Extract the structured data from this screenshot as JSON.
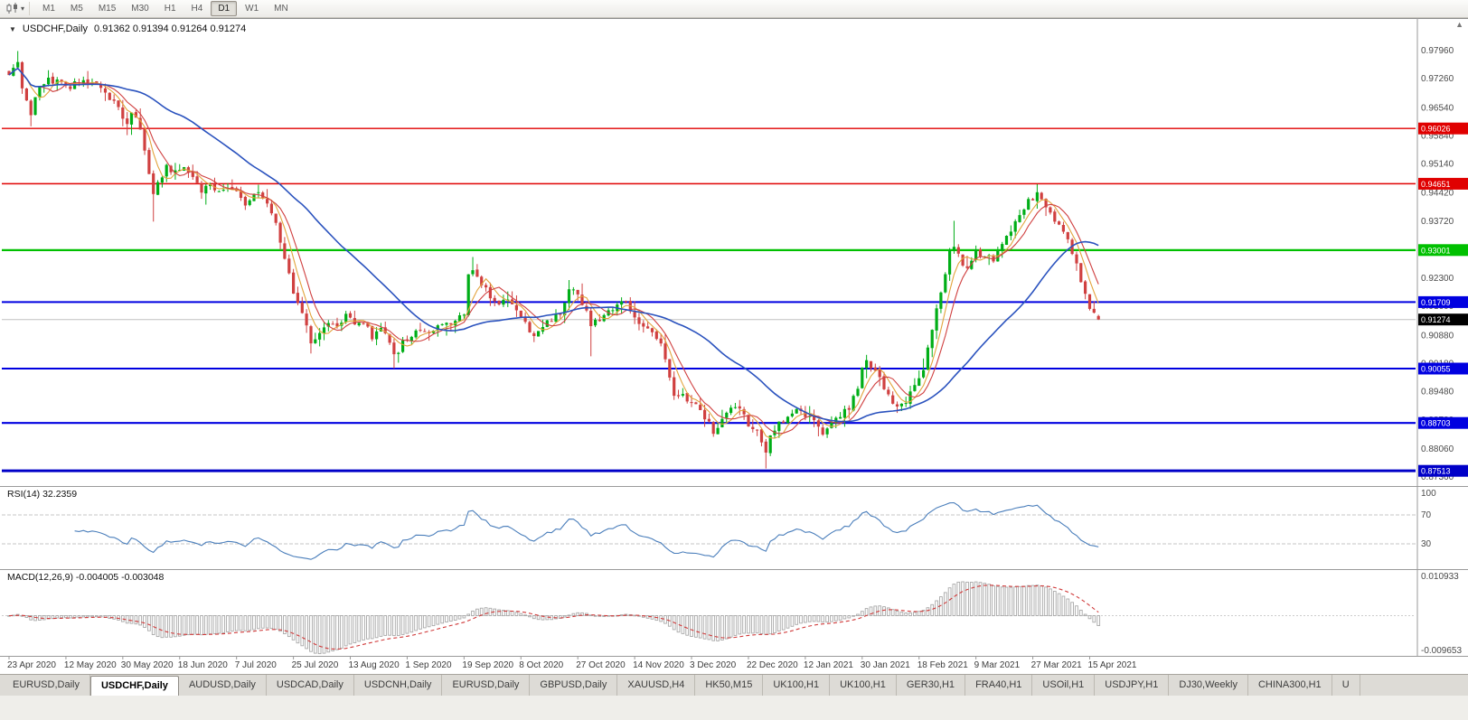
{
  "toolbar": {
    "chart_icon": "candlestick-chart",
    "timeframes": [
      "M1",
      "M5",
      "M15",
      "M30",
      "H1",
      "H4",
      "D1",
      "W1",
      "MN"
    ],
    "active_timeframe": "D1"
  },
  "chart": {
    "collapse_icon": "▼",
    "symbol": "USDCHF,Daily",
    "ohlc": "0.91362 0.91394 0.91264 0.91274",
    "open": 0.91362,
    "high": 0.91394,
    "low": 0.91264,
    "close": 0.91274
  },
  "price_axis": {
    "labels": [
      {
        "v": 0.9796,
        "t": "0.97960"
      },
      {
        "v": 0.9726,
        "t": "0.97260"
      },
      {
        "v": 0.9654,
        "t": "0.96540"
      },
      {
        "v": 0.9584,
        "t": "0.95840"
      },
      {
        "v": 0.9514,
        "t": "0.95140"
      },
      {
        "v": 0.9442,
        "t": "0.94420"
      },
      {
        "v": 0.9372,
        "t": "0.93720"
      },
      {
        "v": 0.9302,
        "t": "0.93020"
      },
      {
        "v": 0.923,
        "t": "0.92300"
      },
      {
        "v": 0.916,
        "t": "0.91600"
      },
      {
        "v": 0.9088,
        "t": "0.90880"
      },
      {
        "v": 0.9018,
        "t": "0.90180"
      },
      {
        "v": 0.8948,
        "t": "0.89480"
      },
      {
        "v": 0.8878,
        "t": "0.88780"
      },
      {
        "v": 0.8806,
        "t": "0.88060"
      },
      {
        "v": 0.8736,
        "t": "0.87360"
      }
    ]
  },
  "levels": [
    {
      "v": 0.96026,
      "t": "0.96026",
      "c": "#e00000",
      "w": 1.4
    },
    {
      "v": 0.94651,
      "t": "0.94651",
      "c": "#e00000",
      "w": 1.4
    },
    {
      "v": 0.93001,
      "t": "0.93001",
      "c": "#00c000",
      "w": 2.2
    },
    {
      "v": 0.91709,
      "t": "0.91709",
      "c": "#0000e0",
      "w": 2
    },
    {
      "v": 0.90055,
      "t": "0.90055",
      "c": "#0000e0",
      "w": 2
    },
    {
      "v": 0.88703,
      "t": "0.88703",
      "c": "#0000e0",
      "w": 2.2
    },
    {
      "v": 0.87513,
      "t": "0.87513",
      "c": "#0000c8",
      "w": 3
    }
  ],
  "current_price": {
    "v": 0.91274,
    "t": "0.91274",
    "c": "#000000"
  },
  "rsi": {
    "label": "RSI(14) 32.2359",
    "period": 14,
    "value": 32.2359,
    "color": "#4a7ebb",
    "axis": [
      {
        "v": 100,
        "t": "100"
      },
      {
        "v": 70,
        "t": "70"
      },
      {
        "v": 30,
        "t": "30"
      }
    ],
    "guides": [
      70,
      30
    ]
  },
  "macd": {
    "label": "MACD(12,26,9) -0.004005 -0.003048",
    "fast": 12,
    "slow": 26,
    "signal_period": 9,
    "main_value": -0.004005,
    "signal_value": -0.003048,
    "histogram_color": "#a8a8a8",
    "signal_color": "#d03a3a",
    "axis_top": {
      "v": 0.010933,
      "t": "0.010933"
    },
    "axis_bottom": {
      "v": -0.009653,
      "t": "-0.009653"
    }
  },
  "dates": [
    {
      "bar": 0,
      "t": "23 Apr 2020"
    },
    {
      "bar": 13,
      "t": "12 May 2020"
    },
    {
      "bar": 26,
      "t": "30 May 2020"
    },
    {
      "bar": 39,
      "t": "18 Jun 2020"
    },
    {
      "bar": 52,
      "t": "7 Jul 2020"
    },
    {
      "bar": 65,
      "t": "25 Jul 2020"
    },
    {
      "bar": 78,
      "t": "13 Aug 2020"
    },
    {
      "bar": 91,
      "t": "1 Sep 2020"
    },
    {
      "bar": 104,
      "t": "19 Sep 2020"
    },
    {
      "bar": 117,
      "t": "8 Oct 2020"
    },
    {
      "bar": 130,
      "t": "27 Oct 2020"
    },
    {
      "bar": 143,
      "t": "14 Nov 2020"
    },
    {
      "bar": 156,
      "t": "3 Dec 2020"
    },
    {
      "bar": 169,
      "t": "22 Dec 2020"
    },
    {
      "bar": 182,
      "t": "12 Jan 2021"
    },
    {
      "bar": 195,
      "t": "30 Jan 2021"
    },
    {
      "bar": 208,
      "t": "18 Feb 2021"
    },
    {
      "bar": 221,
      "t": "9 Mar 2021"
    },
    {
      "bar": 234,
      "t": "27 Mar 2021"
    },
    {
      "bar": 247,
      "t": "15 Apr 2021"
    }
  ],
  "tabs": {
    "active_index": 1,
    "items": [
      "EURUSD,Daily",
      "USDCHF,Daily",
      "AUDUSD,Daily",
      "USDCAD,Daily",
      "USDCNH,Daily",
      "EURUSD,Daily",
      "GBPUSD,Daily",
      "XAUUSD,H4",
      "HK50,M15",
      "UK100,H1",
      "UK100,H1",
      "GER30,H1",
      "FRA40,H1",
      "USOil,H1",
      "USDJPY,H1",
      "DJ30,Weekly",
      "CHINA300,H1",
      "U"
    ]
  },
  "chart_data": {
    "type": "candlestick",
    "symbol": "USDCHF",
    "timeframe": "Daily",
    "bars": 250,
    "price_range": [
      0.8718,
      0.9868
    ],
    "noise": 0.0009,
    "wick": 0.0016,
    "up_color": "#00ae17",
    "down_color": "#d04040",
    "moving_averages": [
      {
        "period": 5,
        "color": "#e2a43c"
      },
      {
        "period": 8,
        "color": "#d04040"
      },
      {
        "period": 34,
        "color": "#2a52be"
      }
    ],
    "close_waypoints": [
      [
        0,
        0.9738
      ],
      [
        2,
        0.9768
      ],
      [
        3,
        0.97
      ],
      [
        5,
        0.9638
      ],
      [
        6,
        0.9682
      ],
      [
        8,
        0.9718
      ],
      [
        11,
        0.9724
      ],
      [
        13,
        0.97
      ],
      [
        15,
        0.9718
      ],
      [
        18,
        0.9713
      ],
      [
        21,
        0.9706
      ],
      [
        23,
        0.9682
      ],
      [
        25,
        0.9656
      ],
      [
        27,
        0.9614
      ],
      [
        28,
        0.9641
      ],
      [
        30,
        0.9602
      ],
      [
        33,
        0.9441
      ],
      [
        34,
        0.9463
      ],
      [
        36,
        0.9503
      ],
      [
        38,
        0.9491
      ],
      [
        40,
        0.9506
      ],
      [
        42,
        0.9481
      ],
      [
        44,
        0.9449
      ],
      [
        46,
        0.9463
      ],
      [
        48,
        0.9446
      ],
      [
        50,
        0.9462
      ],
      [
        52,
        0.9441
      ],
      [
        54,
        0.9413
      ],
      [
        56,
        0.9446
      ],
      [
        58,
        0.9433
      ],
      [
        60,
        0.9399
      ],
      [
        62,
        0.9321
      ],
      [
        64,
        0.9249
      ],
      [
        65,
        0.9193
      ],
      [
        67,
        0.9149
      ],
      [
        69,
        0.9073
      ],
      [
        71,
        0.9093
      ],
      [
        73,
        0.9119
      ],
      [
        75,
        0.9103
      ],
      [
        77,
        0.9136
      ],
      [
        79,
        0.9113
      ],
      [
        81,
        0.9121
      ],
      [
        83,
        0.9086
      ],
      [
        85,
        0.9112
      ],
      [
        87,
        0.9061
      ],
      [
        88,
        0.9036
      ],
      [
        90,
        0.9071
      ],
      [
        92,
        0.9084
      ],
      [
        94,
        0.9106
      ],
      [
        96,
        0.9091
      ],
      [
        98,
        0.9109
      ],
      [
        100,
        0.9126
      ],
      [
        102,
        0.9119
      ],
      [
        104,
        0.9144
      ],
      [
        105,
        0.9233
      ],
      [
        106,
        0.9259
      ],
      [
        108,
        0.9221
      ],
      [
        110,
        0.9176
      ],
      [
        112,
        0.9163
      ],
      [
        114,
        0.9179
      ],
      [
        116,
        0.9151
      ],
      [
        118,
        0.9116
      ],
      [
        120,
        0.9083
      ],
      [
        122,
        0.9106
      ],
      [
        124,
        0.9129
      ],
      [
        126,
        0.9141
      ],
      [
        128,
        0.9206
      ],
      [
        130,
        0.9183
      ],
      [
        132,
        0.9156
      ],
      [
        133,
        0.9113
      ],
      [
        135,
        0.9129
      ],
      [
        137,
        0.9153
      ],
      [
        139,
        0.9163
      ],
      [
        141,
        0.9169
      ],
      [
        143,
        0.9129
      ],
      [
        145,
        0.9116
      ],
      [
        147,
        0.9099
      ],
      [
        149,
        0.9073
      ],
      [
        151,
        0.8989
      ],
      [
        152,
        0.8929
      ],
      [
        154,
        0.8936
      ],
      [
        156,
        0.8913
      ],
      [
        158,
        0.8906
      ],
      [
        160,
        0.8869
      ],
      [
        161,
        0.8846
      ],
      [
        163,
        0.8883
      ],
      [
        165,
        0.8916
      ],
      [
        167,
        0.8906
      ],
      [
        169,
        0.8869
      ],
      [
        171,
        0.8853
      ],
      [
        173,
        0.8803
      ],
      [
        174,
        0.8833
      ],
      [
        176,
        0.8869
      ],
      [
        178,
        0.8883
      ],
      [
        180,
        0.8896
      ],
      [
        182,
        0.8893
      ],
      [
        184,
        0.8869
      ],
      [
        186,
        0.8849
      ],
      [
        188,
        0.8869
      ],
      [
        190,
        0.8893
      ],
      [
        192,
        0.8906
      ],
      [
        194,
        0.8959
      ],
      [
        195,
        0.9003
      ],
      [
        196,
        0.9023
      ],
      [
        198,
        0.8999
      ],
      [
        200,
        0.8953
      ],
      [
        202,
        0.8923
      ],
      [
        203,
        0.8903
      ],
      [
        205,
        0.8926
      ],
      [
        207,
        0.8963
      ],
      [
        209,
        0.9006
      ],
      [
        211,
        0.9096
      ],
      [
        213,
        0.9199
      ],
      [
        215,
        0.9293
      ],
      [
        216,
        0.9313
      ],
      [
        218,
        0.9263
      ],
      [
        219,
        0.9249
      ],
      [
        221,
        0.9296
      ],
      [
        223,
        0.9289
      ],
      [
        225,
        0.9269
      ],
      [
        227,
        0.9313
      ],
      [
        229,
        0.9346
      ],
      [
        231,
        0.9389
      ],
      [
        233,
        0.9429
      ],
      [
        234,
        0.9421
      ],
      [
        235,
        0.9443
      ],
      [
        237,
        0.9406
      ],
      [
        239,
        0.9373
      ],
      [
        241,
        0.9349
      ],
      [
        243,
        0.9296
      ],
      [
        245,
        0.9223
      ],
      [
        246,
        0.9189
      ],
      [
        247,
        0.9153
      ],
      [
        248,
        0.9139
      ],
      [
        249,
        0.9127
      ]
    ],
    "spikes": [
      {
        "bar": 2,
        "high": 0.9795
      },
      {
        "bar": 5,
        "low": 0.9608
      },
      {
        "bar": 33,
        "low": 0.9371
      },
      {
        "bar": 69,
        "low": 0.9043
      },
      {
        "bar": 88,
        "low": 0.9006
      },
      {
        "bar": 106,
        "high": 0.9283
      },
      {
        "bar": 128,
        "high": 0.9223
      },
      {
        "bar": 133,
        "low": 0.9036
      },
      {
        "bar": 161,
        "low": 0.8836
      },
      {
        "bar": 173,
        "low": 0.8757
      },
      {
        "bar": 196,
        "high": 0.9039
      },
      {
        "bar": 216,
        "high": 0.9373
      },
      {
        "bar": 235,
        "high": 0.9464
      }
    ]
  }
}
